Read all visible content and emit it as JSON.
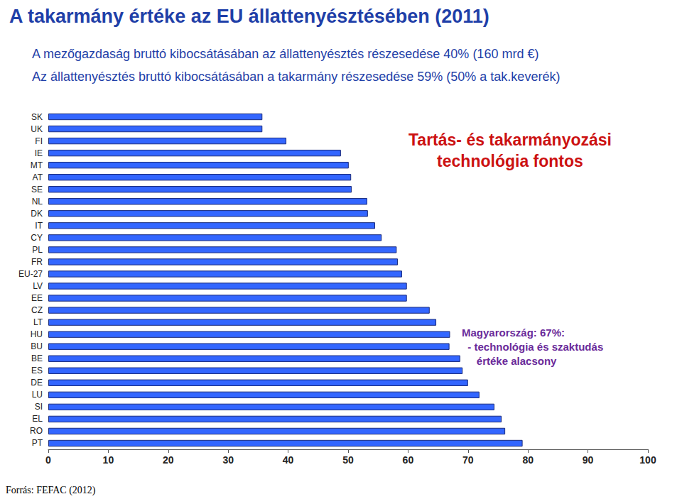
{
  "chart_data": {
    "type": "bar",
    "orientation": "horizontal",
    "title": "A takarmány értéke az EU állattenyésztésében (2011)",
    "subtitle": [
      "A mezőgazdaság bruttó kibocsátásában az állattenyésztés részesedése 40% (160 mrd €)",
      "Az állattenyésztés bruttó kibocsátásában a takarmány részesedése 59% (50% a tak.keverék)"
    ],
    "annotations": [
      "Tartás- és takarmányozási\ntechnológia fontos",
      "Magyarország: 67%:\n  - technológia és szaktudás\n     értéke alacsony"
    ],
    "source": "Forrás: FEFAC (2012)",
    "categories": [
      "SK",
      "UK",
      "FI",
      "IE",
      "MT",
      "AT",
      "SE",
      "NL",
      "DK",
      "IT",
      "CY",
      "PL",
      "FR",
      "EU-27",
      "LV",
      "EE",
      "CZ",
      "LT",
      "HU",
      "BU",
      "BE",
      "ES",
      "DE",
      "LU",
      "SI",
      "EL",
      "RO",
      "PT"
    ],
    "values": [
      35.7,
      35.7,
      39.7,
      48.8,
      50.1,
      50.5,
      50.6,
      53.2,
      53.3,
      54.5,
      55.6,
      58.1,
      58.3,
      59.0,
      59.8,
      59.8,
      63.6,
      64.7,
      67,
      66.9,
      68.7,
      69.1,
      70.0,
      71.9,
      74.4,
      75.6,
      76.2,
      79.1
    ],
    "color": "#3366ff",
    "xlim": [
      0,
      100
    ],
    "xticks": [
      0,
      10,
      20,
      30,
      40,
      50,
      60,
      70,
      80,
      90,
      100
    ],
    "grid": false
  }
}
